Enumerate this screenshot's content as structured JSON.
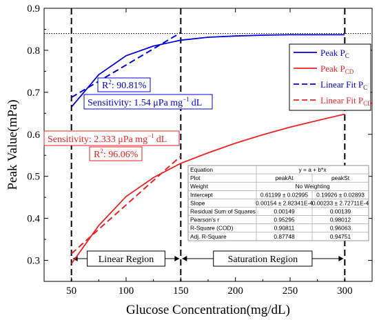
{
  "chart_data": {
    "type": "line",
    "xlabel": "Glucose Concentration(mg/dL)",
    "ylabel": "Peak Value(mPa)",
    "xlim": [
      25,
      325
    ],
    "ylim": [
      0.25,
      0.9
    ],
    "x_ticks": [
      "50",
      "100",
      "150",
      "200",
      "250",
      "300"
    ],
    "y_ticks": [
      "0.3",
      "0.4",
      "0.5",
      "0.6",
      "0.7",
      "0.8",
      "0.9"
    ],
    "grid": false,
    "legend_position": "top-right",
    "series": [
      {
        "name": "Peak P",
        "name_sub": "C",
        "color": "#0000dd",
        "style": "solid",
        "x": [
          50,
          75,
          100,
          125,
          150,
          175,
          200,
          225,
          250,
          275,
          300
        ],
        "y": [
          0.665,
          0.742,
          0.787,
          0.81,
          0.824,
          0.831,
          0.834,
          0.836,
          0.837,
          0.837,
          0.837
        ]
      },
      {
        "name": "Peak P",
        "name_sub": "CD",
        "color": "#ee2222",
        "style": "solid",
        "x": [
          50,
          75,
          100,
          125,
          150,
          175,
          200,
          225,
          250,
          275,
          300
        ],
        "y": [
          0.292,
          0.383,
          0.452,
          0.497,
          0.531,
          0.556,
          0.579,
          0.599,
          0.617,
          0.633,
          0.648
        ]
      },
      {
        "name": "Linear Fit P",
        "name_sub": "C",
        "color": "#0000dd",
        "style": "dashed",
        "x": [
          50,
          150
        ],
        "y": [
          0.688,
          0.842
        ]
      },
      {
        "name": "Linear Fit P",
        "name_sub": "CD",
        "color": "#ee2222",
        "style": "dashed",
        "x": [
          50,
          150
        ],
        "y": [
          0.316,
          0.548
        ]
      }
    ],
    "reference_line_y": 0.84,
    "vertical_lines_x": [
      50,
      150,
      300
    ],
    "regions": [
      {
        "label": "Linear Region",
        "x_start": 50,
        "x_end": 150,
        "y": 0.296
      },
      {
        "label": "Saturation Region",
        "x_start": 150,
        "x_end": 300,
        "y": 0.296
      }
    ],
    "annotations": {
      "blue_r2": {
        "prefix": "R",
        "sup": "2",
        "value": ": 90.81%",
        "color": "#0000dd"
      },
      "blue_sensitivity": {
        "prefix": "Sensitivity: 1.54 μPa mg",
        "sup": "−1",
        "suffix": "dL",
        "color": "#0000dd"
      },
      "red_sensitivity": {
        "prefix": "Sensitivity: 2.333 μPa mg",
        "sup": "−1",
        "suffix": "dL",
        "color": "#ee2222"
      },
      "red_r2": {
        "prefix": "R",
        "sup": "2",
        "value": ": 96.06%",
        "color": "#ee2222"
      }
    },
    "fit_table": {
      "header": [
        "Equation",
        "y = a + b*x"
      ],
      "rows": [
        [
          "Plot",
          "peakAt",
          "peakSt"
        ],
        [
          "Weight",
          "No Weighting"
        ],
        [
          "Intercept",
          "0.61199 ± 0.02995",
          "0.19926 ± 0.02893"
        ],
        [
          "Slope",
          "0.00154 ± 2.82341E-4",
          "0.00233 ± 2.72711E-4"
        ],
        [
          "Residual Sum of Squares",
          "0.00149",
          "0.00139"
        ],
        [
          "Pearson's r",
          "0.95295",
          "0.98012"
        ],
        [
          "R-Square (COD)",
          "0.90811",
          "0.96063"
        ],
        [
          "Adj. R-Square",
          "0.87748",
          "0.94751"
        ]
      ]
    }
  }
}
